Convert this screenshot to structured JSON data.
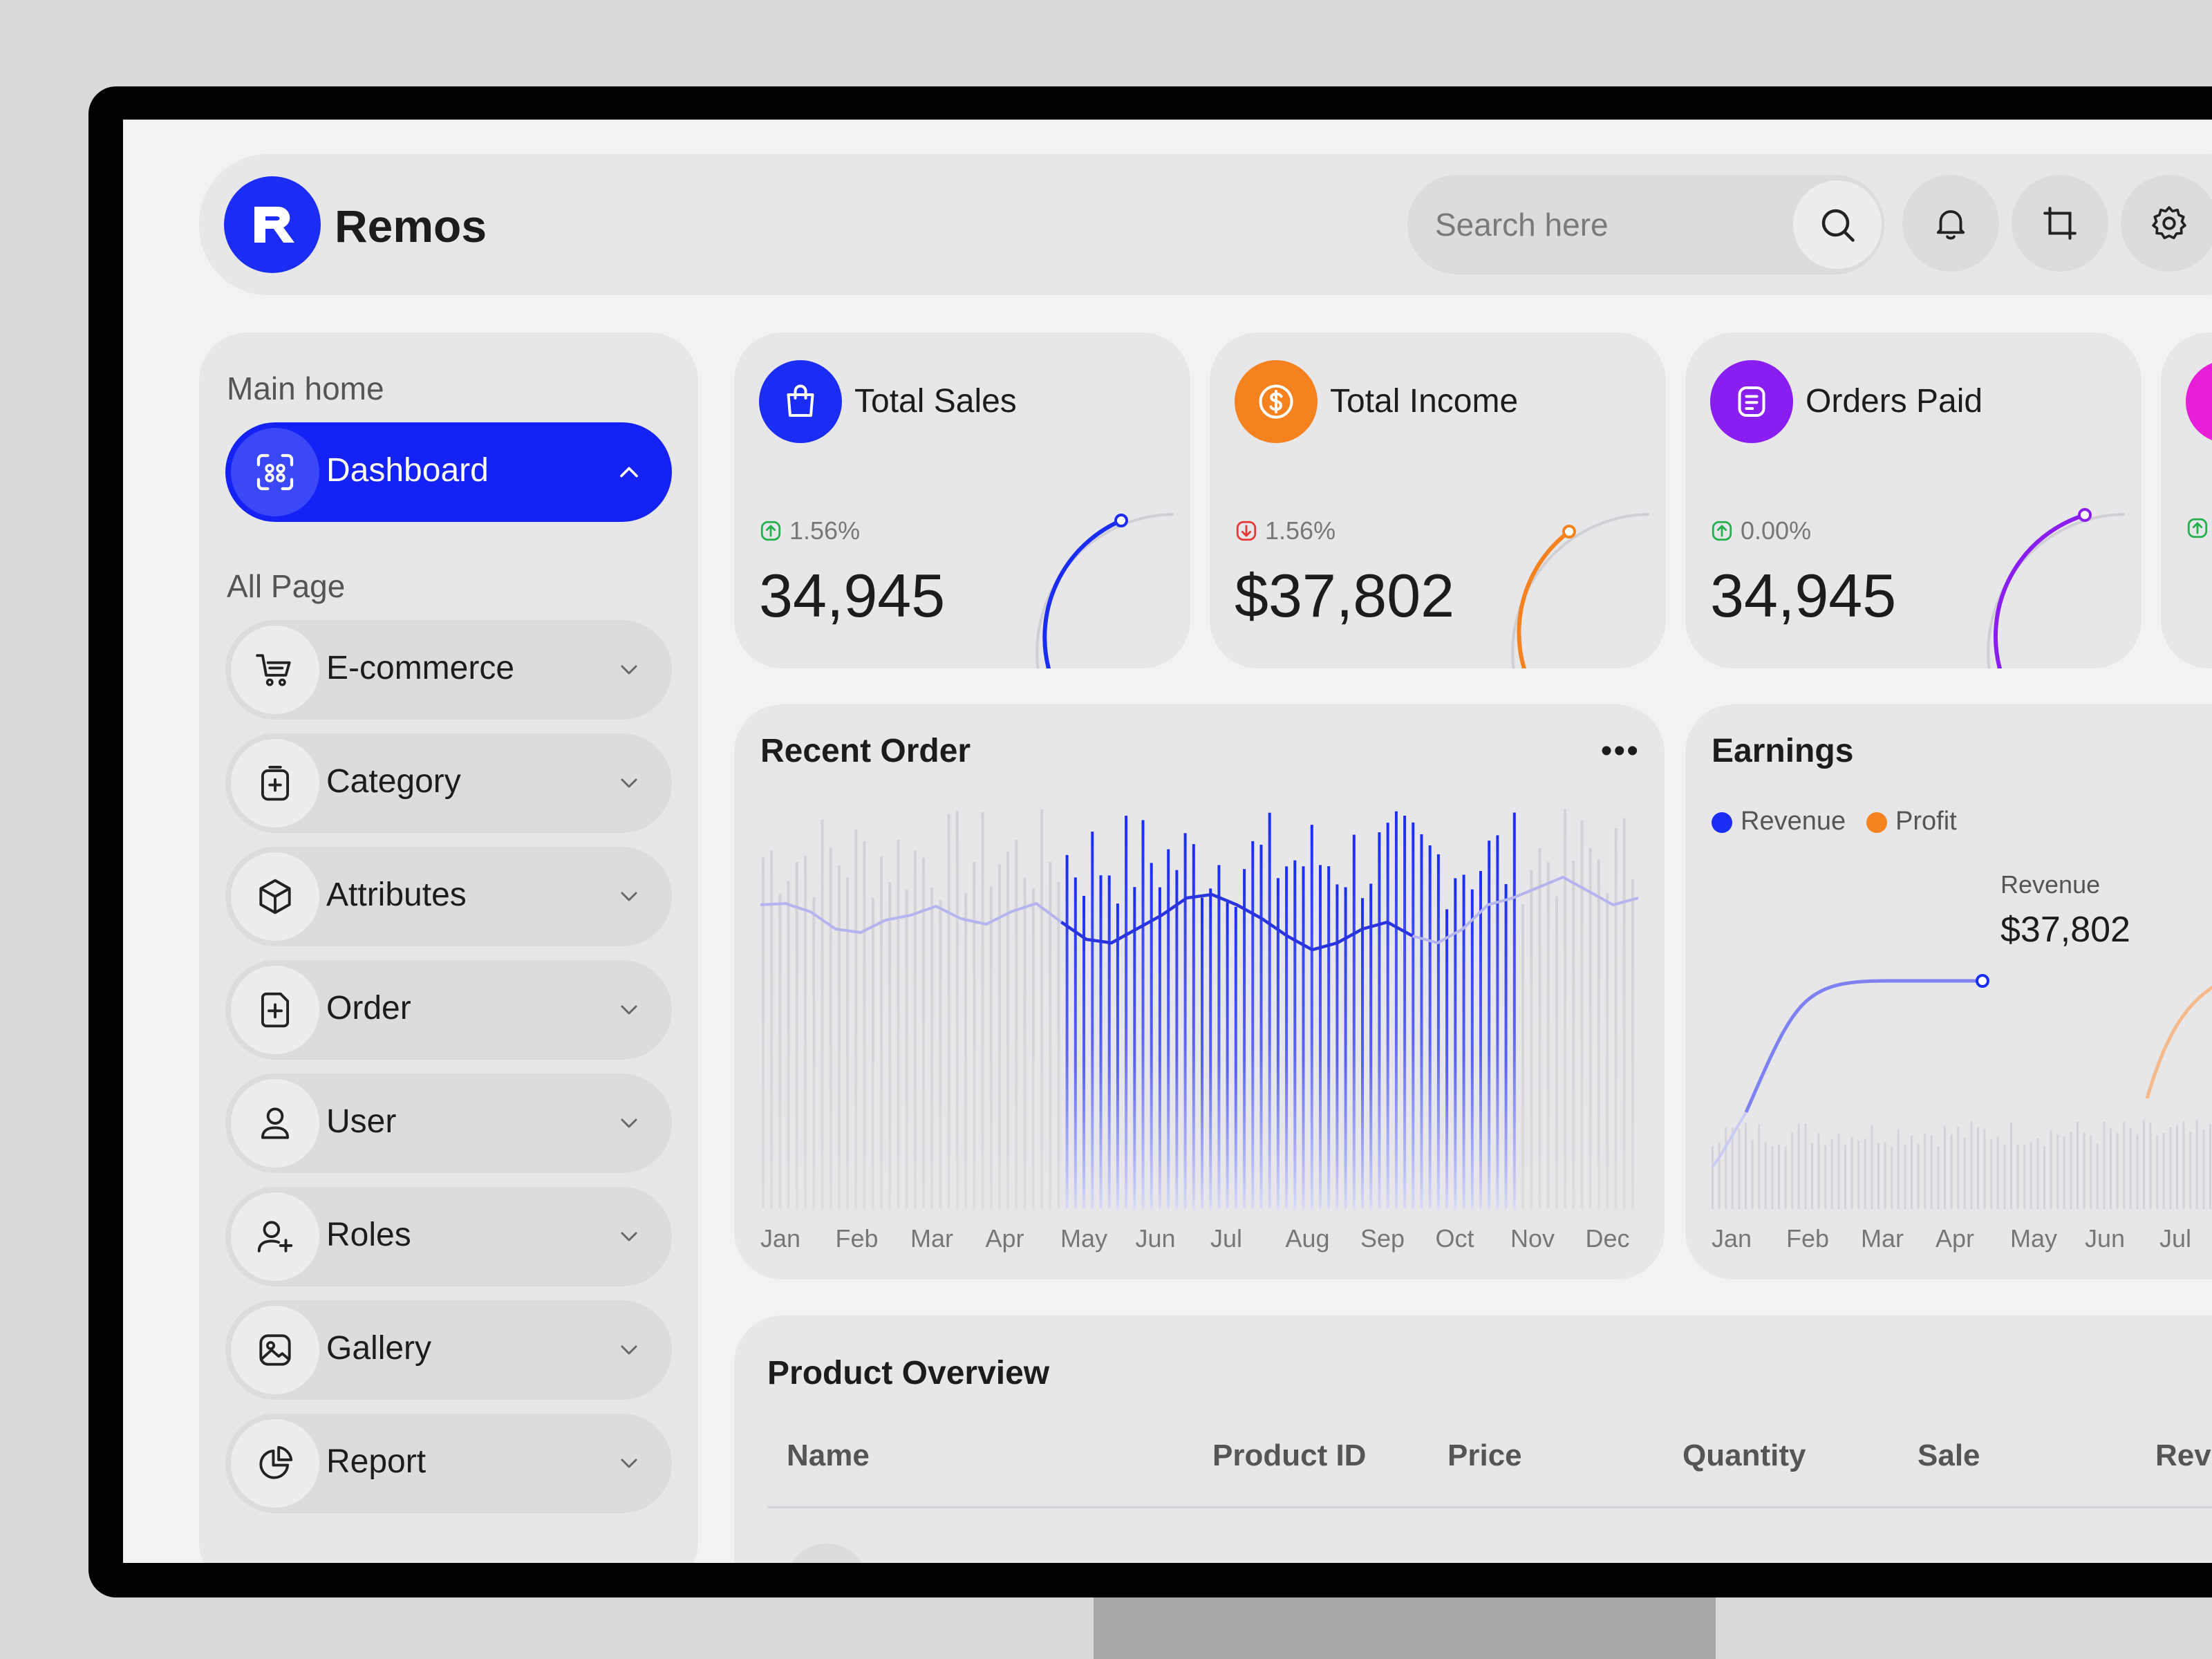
{
  "app": {
    "name": "Remos"
  },
  "search": {
    "placeholder": "Search here"
  },
  "sidebar": {
    "section_main": "Main home",
    "dashboard_label": "Dashboard",
    "section_all": "All Page",
    "items": [
      {
        "label": "E-commerce",
        "icon": "cart-icon"
      },
      {
        "label": "Category",
        "icon": "category-icon"
      },
      {
        "label": "Attributes",
        "icon": "cube-icon"
      },
      {
        "label": "Order",
        "icon": "order-icon"
      },
      {
        "label": "User",
        "icon": "user-icon"
      },
      {
        "label": "Roles",
        "icon": "user-plus-icon"
      },
      {
        "label": "Gallery",
        "icon": "gallery-icon"
      },
      {
        "label": "Report",
        "icon": "pie-chart-icon"
      }
    ]
  },
  "stats": [
    {
      "title": "Total Sales",
      "change": "1.56%",
      "direction": "up",
      "value": "34,945",
      "color": "#1b2df5",
      "icon": "shopping-bag-icon"
    },
    {
      "title": "Total Income",
      "change": "1.56%",
      "direction": "down",
      "value": "$37,802",
      "color": "#f5821f",
      "icon": "dollar-icon"
    },
    {
      "title": "Orders Paid",
      "change": "0.00%",
      "direction": "up",
      "value": "34,945",
      "color": "#8a1df0",
      "icon": "document-icon"
    }
  ],
  "recent_order": {
    "title": "Recent Order",
    "months": [
      "Jan",
      "Feb",
      "Mar",
      "Apr",
      "May",
      "Jun",
      "Jul",
      "Aug",
      "Sep",
      "Oct",
      "Nov",
      "Dec"
    ]
  },
  "earnings": {
    "title": "Earnings",
    "legend": [
      {
        "label": "Revenue",
        "color": "#1b2df5"
      },
      {
        "label": "Profit",
        "color": "#f5821f"
      }
    ],
    "tooltip_label": "Revenue",
    "tooltip_value": "$37,802",
    "months": [
      "Jan",
      "Feb",
      "Mar",
      "Apr",
      "May",
      "Jun",
      "Jul"
    ]
  },
  "product_overview": {
    "title": "Product Overview",
    "columns": [
      "Name",
      "Product ID",
      "Price",
      "Quantity",
      "Sale",
      "Reve"
    ]
  },
  "colors": {
    "accent": "#1422f5",
    "panel": "#e7e7e9",
    "background": "#f2f2f3"
  }
}
